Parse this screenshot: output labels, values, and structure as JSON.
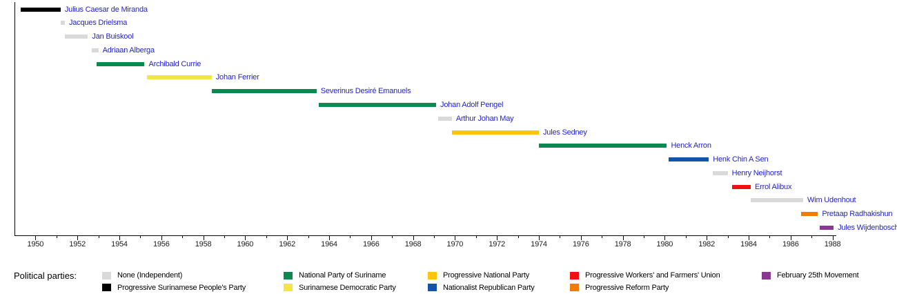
{
  "legend": {
    "title": "Political parties:",
    "columns": [
      {
        "items": [
          {
            "party": "none",
            "label": "None (Independent)"
          },
          {
            "party": "pspp",
            "label": "Progressive Surinamese People's Party"
          }
        ]
      },
      {
        "items": [
          {
            "party": "nps",
            "label": "National Party of Suriname"
          },
          {
            "party": "sdp",
            "label": "Surinamese Democratic Party"
          }
        ]
      },
      {
        "items": [
          {
            "party": "pnp",
            "label": "Progressive National Party"
          },
          {
            "party": "nrp",
            "label": "Nationalist Republican Party"
          }
        ]
      },
      {
        "items": [
          {
            "party": "pwfu",
            "label": "Progressive Workers' and Farmers' Union"
          },
          {
            "party": "prp",
            "label": "Progressive Reform Party"
          }
        ]
      },
      {
        "items": [
          {
            "party": "f25m",
            "label": "February 25th Movement"
          }
        ]
      }
    ]
  },
  "chart_data": {
    "type": "bar",
    "variant": "horizontal-gantt-timeline",
    "title": "",
    "x_axis": {
      "min": 1949,
      "max": 1988.3,
      "major_tick_step": 2,
      "minor_tick_step": 1,
      "tick_labels": [
        "1950",
        "1952",
        "1954",
        "1956",
        "1958",
        "1960",
        "1962",
        "1964",
        "1966",
        "1968",
        "1970",
        "1972",
        "1974",
        "1976",
        "1978",
        "1980",
        "1982",
        "1984",
        "1986",
        "1988"
      ]
    },
    "parties": [
      {
        "id": "none",
        "label": "None (Independent)",
        "color": "#d9d9d9"
      },
      {
        "id": "pspp",
        "label": "Progressive Surinamese People's Party",
        "color": "#000000"
      },
      {
        "id": "nps",
        "label": "National Party of Suriname",
        "color": "#0a8a50"
      },
      {
        "id": "sdp",
        "label": "Surinamese Democratic Party",
        "color": "#f2e545"
      },
      {
        "id": "pnp",
        "label": "Progressive National Party",
        "color": "#ffc40c"
      },
      {
        "id": "nrp",
        "label": "Nationalist Republican Party",
        "color": "#1353a8"
      },
      {
        "id": "pwfu",
        "label": "Progressive Workers' and Farmers' Union",
        "color": "#ee1111"
      },
      {
        "id": "prp",
        "label": "Progressive Reform Party",
        "color": "#ef7c00"
      },
      {
        "id": "f25m",
        "label": "February 25th Movement",
        "color": "#8a3892"
      }
    ],
    "people": [
      {
        "name": "Julius Caesar de Miranda",
        "party": "pspp",
        "start": 1949.3,
        "end": 1951.2
      },
      {
        "name": "Jacques Drielsma",
        "party": "none",
        "start": 1951.2,
        "end": 1951.4
      },
      {
        "name": "Jan Buiskool",
        "party": "none",
        "start": 1951.4,
        "end": 1952.5
      },
      {
        "name": "Adriaan Alberga",
        "party": "none",
        "start": 1952.7,
        "end": 1953.0
      },
      {
        "name": "Archibald Currie",
        "party": "nps",
        "start": 1952.9,
        "end": 1955.2
      },
      {
        "name": "Johan Ferrier",
        "party": "sdp",
        "start": 1955.3,
        "end": 1958.4
      },
      {
        "name": "Severinus Desiré Emanuels",
        "party": "nps",
        "start": 1958.4,
        "end": 1963.4
      },
      {
        "name": "Johan Adolf Pengel",
        "party": "nps",
        "start": 1963.5,
        "end": 1969.1
      },
      {
        "name": "Arthur Johan May",
        "party": "none",
        "start": 1969.2,
        "end": 1969.85
      },
      {
        "name": "Jules Sedney",
        "party": "pnp",
        "start": 1969.85,
        "end": 1974.0
      },
      {
        "name": "Henck Arron",
        "party": "nps",
        "start": 1974.0,
        "end": 1980.1
      },
      {
        "name": "Henk Chin A Sen",
        "party": "nrp",
        "start": 1980.2,
        "end": 1982.1
      },
      {
        "name": "Henry Neijhorst",
        "party": "none",
        "start": 1982.3,
        "end": 1983.0
      },
      {
        "name": "Errol Alibux",
        "party": "pwfu",
        "start": 1983.2,
        "end": 1984.1
      },
      {
        "name": "Wim Udenhout",
        "party": "none",
        "start": 1984.1,
        "end": 1986.6
      },
      {
        "name": "Pretaap Radhakishun",
        "party": "prp",
        "start": 1986.5,
        "end": 1987.3
      },
      {
        "name": "Jules Wijdenbosch",
        "party": "f25m",
        "start": 1987.4,
        "end": 1988.05
      }
    ]
  }
}
